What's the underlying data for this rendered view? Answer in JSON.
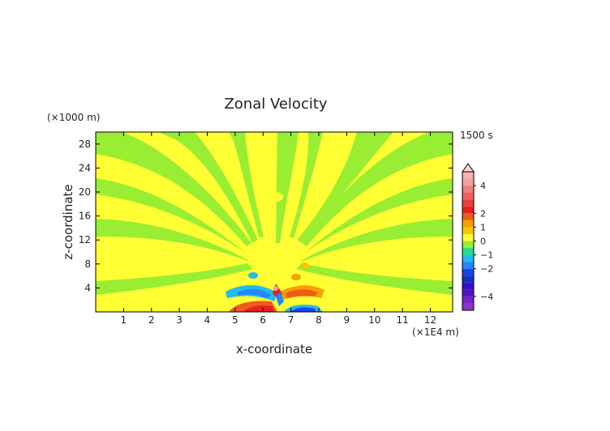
{
  "chart_data": {
    "type": "heatmap",
    "title": "Zonal Velocity",
    "time_label": "1500 s",
    "xlabel": "x-coordinate",
    "ylabel": "z-coordinate",
    "x_unit_label": "(×1E4 m)",
    "y_unit_label": "(×1000 m)",
    "xlim": [
      0,
      12.8
    ],
    "ylim": [
      0,
      30
    ],
    "x_ticks": [
      1,
      2,
      3,
      4,
      5,
      6,
      7,
      8,
      9,
      10,
      11,
      12
    ],
    "y_ticks": [
      4,
      8,
      12,
      16,
      20,
      24,
      28
    ],
    "colorbar": {
      "range": [
        -5,
        5
      ],
      "tick_values": [
        4,
        2,
        1,
        0,
        -1,
        -2,
        -4
      ],
      "tick_labels": [
        "4",
        "2",
        "1",
        "0",
        "−1",
        "−2",
        "−4"
      ],
      "levels": [
        {
          "from": 4.5,
          "to": 5,
          "color": "#f5b2b2"
        },
        {
          "from": 4,
          "to": 4.5,
          "color": "#f4a0a0"
        },
        {
          "from": 3.5,
          "to": 4,
          "color": "#ef7d7d"
        },
        {
          "from": 3,
          "to": 3.5,
          "color": "#f06060"
        },
        {
          "from": 2.5,
          "to": 3,
          "color": "#ee3b3b"
        },
        {
          "from": 2,
          "to": 2.5,
          "color": "#e61f1f"
        },
        {
          "from": 1.5,
          "to": 2,
          "color": "#f05a1e"
        },
        {
          "from": 1,
          "to": 1.5,
          "color": "#f5a000"
        },
        {
          "from": 0.5,
          "to": 1,
          "color": "#f5c800"
        },
        {
          "from": 0,
          "to": 0.5,
          "color": "#ffff33"
        },
        {
          "from": -0.5,
          "to": 0,
          "color": "#99ee33"
        },
        {
          "from": -1,
          "to": -0.5,
          "color": "#22dd88"
        },
        {
          "from": -1.5,
          "to": -1,
          "color": "#22bbee"
        },
        {
          "from": -2,
          "to": -1.5,
          "color": "#2288ff"
        },
        {
          "from": -2.5,
          "to": -2,
          "color": "#1144ee"
        },
        {
          "from": -3,
          "to": -2.5,
          "color": "#1133bb"
        },
        {
          "from": -3.5,
          "to": -3,
          "color": "#3311cc"
        },
        {
          "from": -4,
          "to": -3.5,
          "color": "#5511bb"
        },
        {
          "from": -4.5,
          "to": -4,
          "color": "#7722cc"
        },
        {
          "from": -5,
          "to": -4.5,
          "color": "#8833cc"
        }
      ],
      "overflow_triangle": "top"
    },
    "background_value": 0.2,
    "approximate_features": [
      {
        "x": 6.5,
        "z": 1.3,
        "value": 2.0
      },
      {
        "x": 6.0,
        "z": 0.7,
        "value": 2.5
      },
      {
        "x": 7.2,
        "z": 0.4,
        "value": -2.5
      },
      {
        "x": 5.3,
        "z": 2.1,
        "value": -1.3
      },
      {
        "x": 7.5,
        "z": 2.4,
        "value": 1.5
      },
      {
        "x": 6.4,
        "z": 2.9,
        "value": 4.0
      },
      {
        "x": 6.6,
        "z": 1.8,
        "value": -3.0
      }
    ],
    "grid": false
  }
}
